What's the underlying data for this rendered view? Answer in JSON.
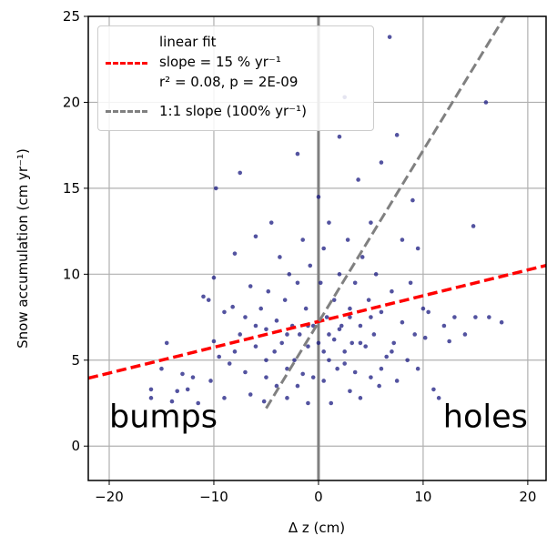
{
  "chart_data": {
    "type": "scatter",
    "xlabel": "Δ z (cm)",
    "ylabel": "Snow accumulation (cm yr⁻¹)",
    "xlim": [
      -22,
      21.75
    ],
    "ylim": [
      -2,
      25
    ],
    "xticks": [
      {
        "value": -20,
        "label": "−20"
      },
      {
        "value": -10,
        "label": "−10"
      },
      0,
      10,
      20
    ],
    "yticks": [
      0,
      5,
      10,
      15,
      20,
      25
    ],
    "grid": true,
    "vlines": [
      0
    ],
    "points": {
      "color": "#1a1a80",
      "x": [
        -16,
        -16,
        -15,
        -14.5,
        -14,
        -13.5,
        -13,
        -12.5,
        -12,
        -11.5,
        -11,
        -10.5,
        -10.3,
        -10,
        -9.8,
        -9.5,
        -9,
        -9,
        -8.5,
        -8.2,
        -8,
        -7.5,
        -7.5,
        -7,
        -7,
        -6.5,
        -6.5,
        -6,
        -6,
        -5.5,
        -5.2,
        -5,
        -5,
        -4.8,
        -4.5,
        -4.2,
        -4,
        -4,
        -3.7,
        -3.5,
        -3.2,
        -3,
        -3,
        -2.8,
        -2.5,
        -2.3,
        -2,
        -2,
        -1.8,
        -1.5,
        -1.5,
        -1.2,
        -1,
        -1,
        -0.8,
        -0.5,
        -0.5,
        -2,
        0,
        0,
        0.2,
        0.5,
        0.5,
        0.8,
        1,
        1,
        1.2,
        1.5,
        1.5,
        1.8,
        2,
        2,
        2.2,
        2.5,
        2.5,
        2.8,
        3,
        3,
        3.2,
        3.5,
        3.5,
        3.8,
        4,
        4,
        4.2,
        4.5,
        4.8,
        5,
        5,
        5.3,
        5.5,
        5.8,
        6,
        6,
        6.5,
        6.8,
        7,
        7.2,
        7.5,
        7.5,
        8,
        8,
        8.5,
        8.8,
        9,
        9.2,
        9.5,
        9.5,
        10,
        10.2,
        10.5,
        11,
        11.5,
        12,
        12.5,
        13,
        14,
        14.8,
        15,
        16,
        16.3,
        17.5,
        -10,
        -8,
        -6,
        2,
        3,
        -1,
        1,
        4,
        -3,
        5,
        7,
        -5,
        0.5,
        2.5,
        6
      ],
      "values": [
        2.8,
        3.3,
        4.5,
        6.0,
        2.6,
        3.2,
        4.2,
        3.3,
        4.0,
        2.5,
        8.7,
        8.5,
        3.8,
        6.1,
        15.0,
        5.2,
        7.8,
        2.8,
        4.8,
        8.1,
        11.2,
        15.9,
        6.5,
        4.3,
        7.5,
        9.3,
        3.0,
        12.2,
        5.8,
        8.0,
        2.6,
        6.8,
        4.0,
        9.0,
        13.0,
        5.5,
        7.3,
        3.5,
        11.0,
        6.0,
        8.5,
        4.5,
        2.8,
        10.0,
        7.0,
        5.0,
        9.5,
        3.5,
        6.5,
        12.0,
        4.2,
        8.0,
        5.8,
        2.5,
        10.5,
        7.0,
        4.0,
        17.0,
        14.5,
        6.0,
        9.5,
        3.8,
        11.5,
        7.5,
        5.0,
        13.0,
        2.5,
        8.5,
        6.2,
        4.5,
        10.0,
        18.0,
        7.0,
        5.5,
        20.3,
        12.0,
        3.2,
        8.0,
        6.0,
        9.5,
        4.3,
        15.5,
        7.0,
        2.8,
        11.0,
        5.8,
        8.5,
        13.0,
        4.0,
        6.5,
        10.0,
        3.5,
        7.8,
        16.5,
        5.2,
        23.8,
        9.0,
        6.0,
        18.1,
        3.8,
        12.0,
        7.2,
        5.0,
        9.5,
        14.3,
        6.5,
        11.5,
        4.5,
        8.0,
        6.3,
        7.8,
        3.3,
        2.8,
        7.0,
        6.1,
        7.5,
        6.5,
        12.8,
        7.5,
        20.0,
        7.5,
        7.2,
        9.8,
        5.5,
        7.0,
        6.8,
        7.5,
        7.0,
        6.5,
        6.0,
        6.5,
        7.5,
        5.5,
        5.0,
        5.5,
        4.8,
        4.5
      ]
    },
    "series": [
      {
        "name": "linear fit\nslope = 15 % yr⁻¹\nr² = 0.08, p = 2E-09",
        "color": "#ff0000",
        "x": [
          -22,
          21.75
        ],
        "values": [
          3.95,
          10.51
        ]
      },
      {
        "name": "1:1 slope (100% yr⁻¹)",
        "color": "#808080",
        "x": [
          -5,
          17.8
        ],
        "values": [
          2.2,
          25
        ]
      }
    ],
    "annotations": [
      {
        "text": "bumps",
        "x": -20,
        "y": 1
      },
      {
        "text": "holes",
        "x": 20,
        "y": 1
      }
    ]
  }
}
